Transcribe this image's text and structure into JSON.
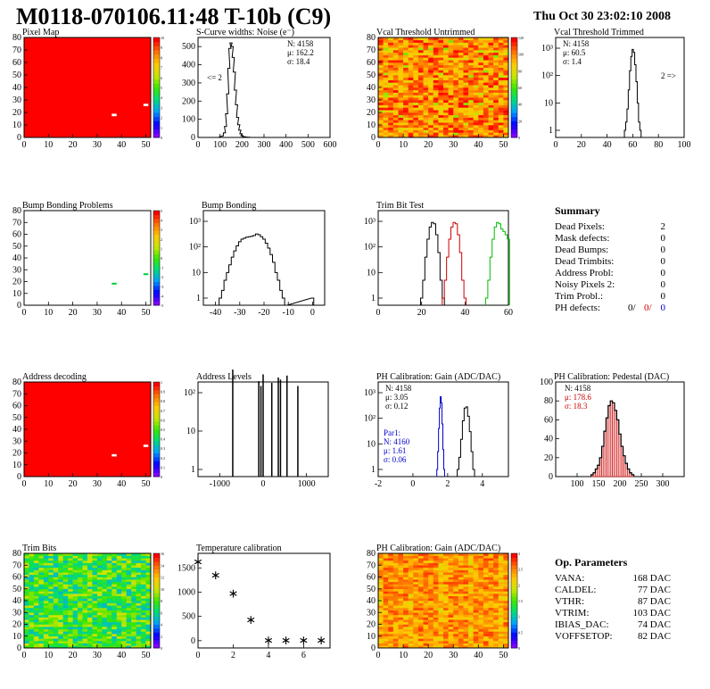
{
  "header": {
    "title": "M0118-070106.11:48 T-10b (C9)",
    "timestamp": "Thu Oct 30 23:02:10 2008"
  },
  "colors": {
    "noise_line": "#000000",
    "trim_series": [
      "#000000",
      "#cc0000",
      "#00bb00"
    ],
    "par1_blue": "#0000cc",
    "pedestal_red": "#cc0000"
  },
  "chart_data": [
    {
      "id": "pixel-map",
      "type": "heatmap",
      "title": "Pixel Map",
      "xlim": [
        0,
        52
      ],
      "ylim": [
        0,
        80
      ],
      "xticks": [
        "0",
        "10",
        "20",
        "30",
        "40",
        "50"
      ],
      "yticks": [
        "0",
        "10",
        "20",
        "30",
        "40",
        "50",
        "60",
        "70",
        "80"
      ],
      "colorbar_ticks": [
        "0",
        "1",
        "2",
        "3",
        "4",
        "5",
        "6",
        "7",
        "8",
        "9",
        "10"
      ],
      "fill": "uniform-max",
      "dead_pixels": [
        [
          36,
          18
        ],
        [
          49,
          26
        ]
      ]
    },
    {
      "id": "scurve-noise",
      "type": "line",
      "title": "S-Curve widths: Noise (e⁻)",
      "xlim": [
        0,
        600
      ],
      "ylim": [
        0,
        550
      ],
      "xticks": [
        "0",
        "100",
        "200",
        "300",
        "400",
        "500",
        "600"
      ],
      "yticks": [
        "0",
        "100",
        "200",
        "300",
        "400",
        "500"
      ],
      "stats": [
        "N: 4158",
        "μ: 162.2",
        "σ: 18.4"
      ],
      "annotation": "<= 2",
      "x": [
        90,
        100,
        110,
        120,
        125,
        130,
        135,
        140,
        145,
        150,
        155,
        160,
        165,
        170,
        175,
        180,
        185,
        190,
        195,
        200,
        210,
        220,
        230,
        240
      ],
      "values": [
        0,
        2,
        8,
        25,
        60,
        130,
        240,
        380,
        490,
        520,
        500,
        440,
        360,
        260,
        180,
        110,
        70,
        40,
        20,
        10,
        4,
        2,
        1,
        0
      ]
    },
    {
      "id": "vcal-untrimmed",
      "type": "heatmap",
      "title": "Vcal Threshold Untrimmed",
      "xlim": [
        0,
        52
      ],
      "ylim": [
        0,
        80
      ],
      "xticks": [
        "0",
        "10",
        "20",
        "30",
        "40",
        "50"
      ],
      "yticks": [
        "0",
        "10",
        "20",
        "30",
        "40",
        "50",
        "60",
        "70",
        "80"
      ],
      "colorbar_ticks": [
        "0",
        "20",
        "40",
        "60",
        "80",
        "100",
        "120"
      ],
      "fill": "noise-orange"
    },
    {
      "id": "vcal-trimmed",
      "type": "line",
      "title": "Vcal Threshold Trimmed",
      "xlim": [
        0,
        100
      ],
      "log": true,
      "xticks": [
        "0",
        "20",
        "40",
        "60",
        "80",
        "100"
      ],
      "yticks_log": [
        "1",
        "10",
        "10²",
        "10³"
      ],
      "stats": [
        "N: 4158",
        "μ: 60.5",
        "σ: 1.4"
      ],
      "annotation": "2 =>",
      "x": [
        54,
        55,
        56,
        57,
        58,
        59,
        60,
        61,
        62,
        63,
        64,
        65,
        66
      ],
      "values": [
        1,
        2,
        6,
        30,
        150,
        500,
        900,
        700,
        250,
        60,
        10,
        2,
        1
      ]
    },
    {
      "id": "bump-bonding-problems",
      "type": "heatmap",
      "title": "Bump Bonding Problems",
      "xlim": [
        0,
        52
      ],
      "ylim": [
        0,
        80
      ],
      "xticks": [
        "0",
        "10",
        "20",
        "30",
        "40",
        "50"
      ],
      "yticks": [
        "0",
        "10",
        "20",
        "30",
        "40",
        "50",
        "60",
        "70",
        "80"
      ],
      "colorbar_ticks": [
        "-5",
        "-4",
        "-3",
        "-2",
        "-1",
        "0",
        "1",
        "2",
        "3",
        "4",
        "5"
      ],
      "fill": "empty",
      "marks": [
        [
          36,
          18
        ],
        [
          49,
          26
        ]
      ]
    },
    {
      "id": "bump-bonding",
      "type": "line",
      "title": "Bump Bonding",
      "xlim": [
        -45,
        5
      ],
      "log": true,
      "xticks": [
        "-40",
        "-30",
        "-20",
        "-10",
        "0"
      ],
      "yticks_log": [
        "1",
        "10",
        "10²",
        "10³"
      ],
      "x": [
        -38,
        -37,
        -36,
        -35,
        -34,
        -33,
        -32,
        -31,
        -30,
        -29,
        -28,
        -27,
        -26,
        -25,
        -24,
        -23,
        -22,
        -21,
        -20,
        -19,
        -18,
        -17,
        -16,
        -15,
        -14,
        -13,
        -12,
        -11,
        0
      ],
      "values": [
        1,
        2,
        5,
        10,
        20,
        40,
        70,
        110,
        160,
        200,
        220,
        240,
        250,
        260,
        280,
        320,
        300,
        250,
        200,
        140,
        90,
        50,
        25,
        10,
        5,
        2,
        1,
        0,
        1
      ]
    },
    {
      "id": "trim-bit-test",
      "type": "line",
      "title": "Trim Bit Test",
      "xlim": [
        0,
        60
      ],
      "log": true,
      "xticks": [
        "0",
        "20",
        "40",
        "60"
      ],
      "yticks_log": [
        "1",
        "10",
        "10²",
        "10³"
      ],
      "series": [
        {
          "x": [
            20,
            21,
            22,
            23,
            24,
            25,
            26,
            27,
            28,
            29,
            30
          ],
          "values": [
            1,
            5,
            40,
            200,
            600,
            900,
            800,
            300,
            60,
            5,
            1
          ]
        },
        {
          "x": [
            30,
            31,
            32,
            33,
            34,
            35,
            36,
            37,
            38,
            39,
            40
          ],
          "values": [
            1,
            5,
            40,
            200,
            600,
            900,
            800,
            300,
            60,
            5,
            1
          ]
        },
        {
          "x": [
            50,
            51,
            52,
            53,
            54,
            55,
            56,
            57,
            58,
            59,
            60
          ],
          "values": [
            1,
            5,
            40,
            200,
            600,
            900,
            800,
            500,
            400,
            300,
            200
          ]
        }
      ]
    },
    {
      "id": "address-decoding",
      "type": "heatmap",
      "title": "Address decoding",
      "xlim": [
        0,
        52
      ],
      "ylim": [
        0,
        80
      ],
      "xticks": [
        "0",
        "10",
        "20",
        "30",
        "40",
        "50"
      ],
      "yticks": [
        "0",
        "10",
        "20",
        "30",
        "40",
        "50",
        "60",
        "70",
        "80"
      ],
      "colorbar_ticks": [
        "0",
        "0.1",
        "0.2",
        "0.3",
        "0.4",
        "0.5",
        "0.6",
        "0.7",
        "0.8",
        "0.9",
        "1"
      ],
      "fill": "uniform-max",
      "dead_pixels": [
        [
          36,
          18
        ],
        [
          49,
          26
        ]
      ]
    },
    {
      "id": "address-levels",
      "type": "line",
      "title": "Address Levels",
      "xlim": [
        -1500,
        1500
      ],
      "log": true,
      "xticks": [
        "-1000",
        "0",
        "1000"
      ],
      "yticks_log": [
        "1",
        "10",
        "10²"
      ],
      "x": [
        -700,
        -100,
        -50,
        0,
        200,
        350,
        400,
        550,
        800
      ],
      "values": [
        400,
        200,
        150,
        300,
        180,
        250,
        220,
        280,
        150
      ]
    },
    {
      "id": "ph-gain",
      "type": "line",
      "title": "PH Calibration: Gain (ADC/DAC)",
      "xlim": [
        -2,
        5.5
      ],
      "log": true,
      "xticks": [
        "-2",
        "0",
        "2",
        "4"
      ],
      "yticks_log": [
        "1",
        "10",
        "10²",
        "10³"
      ],
      "stats": [
        "N: 4158",
        "μ: 3.05",
        "σ: 0.12"
      ],
      "par1_stats": [
        "Par1:",
        "N: 4160",
        "μ: 1.61",
        "σ: 0.06"
      ],
      "series": [
        {
          "x": [
            2.6,
            2.7,
            2.8,
            2.9,
            3.0,
            3.1,
            3.2,
            3.3,
            3.4,
            3.5
          ],
          "values": [
            1,
            3,
            15,
            80,
            250,
            280,
            120,
            30,
            5,
            1
          ]
        },
        {
          "x": [
            1.4,
            1.45,
            1.5,
            1.55,
            1.6,
            1.65,
            1.7,
            1.75,
            1.8
          ],
          "values": [
            1,
            5,
            40,
            250,
            700,
            400,
            60,
            6,
            1
          ]
        }
      ]
    },
    {
      "id": "ph-pedestal",
      "type": "line",
      "title": "PH Calibration: Pedestal (DAC)",
      "xlim": [
        50,
        350
      ],
      "xticks": [
        "100",
        "150",
        "200",
        "250",
        "300"
      ],
      "yticks": [
        "0",
        "20",
        "40",
        "60",
        "80",
        "100"
      ],
      "stats": [
        "N: 4158",
        "μ: 178.6",
        "σ: 18.3"
      ],
      "x": [
        135,
        140,
        145,
        150,
        155,
        160,
        165,
        170,
        175,
        180,
        185,
        190,
        195,
        200,
        205,
        210,
        215,
        220,
        225,
        230
      ],
      "values": [
        2,
        4,
        8,
        12,
        20,
        32,
        48,
        62,
        75,
        80,
        78,
        70,
        60,
        45,
        32,
        22,
        14,
        8,
        4,
        2
      ]
    },
    {
      "id": "trim-bits",
      "type": "heatmap",
      "title": "Trim Bits",
      "xlim": [
        0,
        52
      ],
      "ylim": [
        0,
        80
      ],
      "xticks": [
        "0",
        "10",
        "20",
        "30",
        "40",
        "50"
      ],
      "yticks": [
        "0",
        "10",
        "20",
        "30",
        "40",
        "50",
        "60",
        "70",
        "80"
      ],
      "colorbar_ticks": [
        "0",
        "2",
        "4",
        "6",
        "8",
        "10",
        "12",
        "14",
        "16"
      ],
      "fill": "noise-green"
    },
    {
      "id": "temperature-calibration",
      "type": "scatter",
      "title": "Temperature calibration",
      "xlim": [
        0,
        7.5
      ],
      "ylim": [
        -150,
        1800
      ],
      "xticks": [
        "0",
        "2",
        "4",
        "6"
      ],
      "yticks": [
        "0",
        "500",
        "1000",
        "1500"
      ],
      "x": [
        0,
        1,
        2,
        3,
        4,
        5,
        6,
        7
      ],
      "values": [
        1620,
        1340,
        960,
        420,
        0,
        0,
        0,
        0
      ]
    },
    {
      "id": "ph-gain-map",
      "type": "heatmap",
      "title": "PH Calibration: Gain (ADC/DAC)",
      "xlim": [
        0,
        52
      ],
      "ylim": [
        0,
        80
      ],
      "xticks": [
        "0",
        "10",
        "20",
        "30",
        "40",
        "50"
      ],
      "yticks": [
        "0",
        "10",
        "20",
        "30",
        "40",
        "50",
        "60",
        "70",
        "80"
      ],
      "colorbar_ticks": [
        "0",
        "0.5",
        "1",
        "1.5",
        "2",
        "2.5",
        "3"
      ],
      "fill": "noise-orange-stripes"
    }
  ],
  "summary": {
    "title": "Summary",
    "rows": [
      {
        "label": "Dead Pixels:",
        "value": "2"
      },
      {
        "label": "Mask defects:",
        "value": "0"
      },
      {
        "label": "Dead Bumps:",
        "value": "0"
      },
      {
        "label": "Dead Trimbits:",
        "value": "0"
      },
      {
        "label": "Address Probl:",
        "value": "0"
      },
      {
        "label": "Noisy Pixels 2:",
        "value": "0"
      },
      {
        "label": "Trim Probl.:",
        "value": "0"
      }
    ],
    "ph_label": "PH defects:",
    "ph_values": [
      "0/",
      "0/",
      "0"
    ]
  },
  "op_params": {
    "title": "Op. Parameters",
    "rows": [
      {
        "label": "VANA:",
        "value": "168 DAC"
      },
      {
        "label": "CALDEL:",
        "value": "77 DAC"
      },
      {
        "label": "VTHR:",
        "value": "87 DAC"
      },
      {
        "label": "VTRIM:",
        "value": "103 DAC"
      },
      {
        "label": "IBIAS_DAC:",
        "value": "74 DAC"
      },
      {
        "label": "VOFFSETOP:",
        "value": "82 DAC"
      }
    ]
  }
}
